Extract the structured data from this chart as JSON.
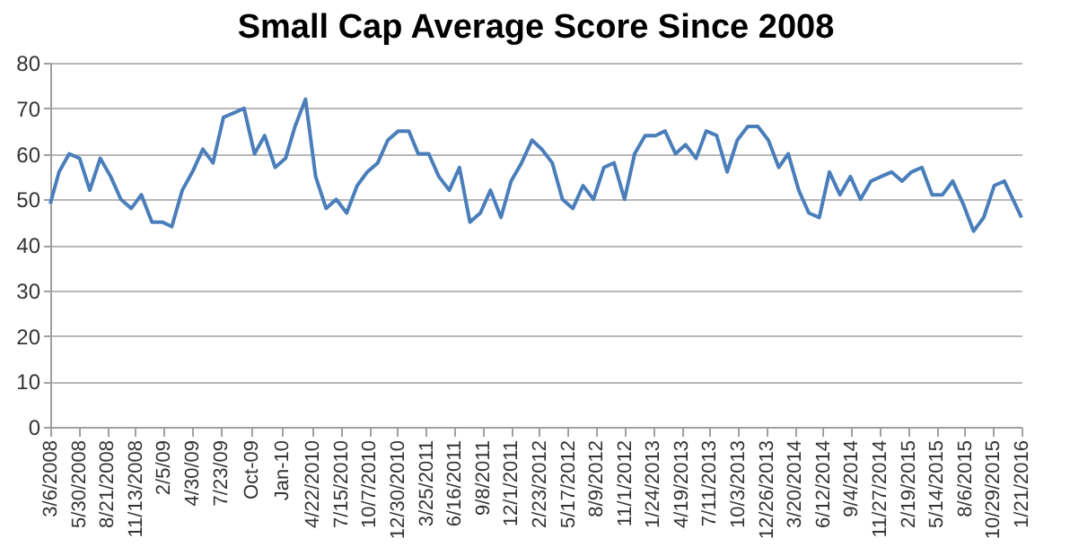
{
  "chart_data": {
    "type": "line",
    "title": "Small Cap Average Score Since 2008",
    "x": [
      "2008-03-06",
      "2008-04",
      "2008-05",
      "2008-06",
      "2008-07",
      "2008-08",
      "2008-09",
      "2008-10",
      "2008-11",
      "2008-12",
      "2009-01",
      "2009-02",
      "2009-03",
      "2009-04",
      "2009-05",
      "2009-06",
      "2009-07",
      "2009-08",
      "2009-09",
      "2009-10",
      "2009-11",
      "2009-12",
      "2010-01",
      "2010-02",
      "2010-03",
      "2010-04",
      "2010-05",
      "2010-06",
      "2010-07",
      "2010-08",
      "2010-09",
      "2010-10",
      "2010-11",
      "2010-12",
      "2011-01",
      "2011-02",
      "2011-03",
      "2011-04",
      "2011-05",
      "2011-06",
      "2011-07",
      "2011-08",
      "2011-09",
      "2011-10",
      "2011-11",
      "2011-12",
      "2012-01",
      "2012-02",
      "2012-03",
      "2012-04",
      "2012-05",
      "2012-06",
      "2012-07",
      "2012-08",
      "2012-09",
      "2012-10",
      "2012-11",
      "2012-12",
      "2013-01",
      "2013-02",
      "2013-03",
      "2013-04",
      "2013-05",
      "2013-06",
      "2013-07",
      "2013-08",
      "2013-09",
      "2013-10",
      "2013-11",
      "2013-12",
      "2014-01",
      "2014-02",
      "2014-03",
      "2014-04",
      "2014-05",
      "2014-06",
      "2014-07",
      "2014-08",
      "2014-09",
      "2014-10",
      "2014-11",
      "2014-12",
      "2015-01",
      "2015-02",
      "2015-03",
      "2015-04",
      "2015-05",
      "2015-06",
      "2015-07",
      "2015-08",
      "2015-09",
      "2015-10",
      "2015-11",
      "2015-12",
      "2016-01-21"
    ],
    "series": [
      {
        "color": "#4a7ebb",
        "values": [
          49,
          56,
          60,
          59,
          52,
          59,
          55,
          50,
          48,
          51,
          45,
          45,
          44,
          52,
          56,
          61,
          58,
          68,
          69,
          70,
          60,
          64,
          57,
          59,
          66,
          72,
          55,
          48,
          50,
          47,
          53,
          56,
          58,
          63,
          65,
          65,
          60,
          60,
          55,
          52,
          57,
          45,
          47,
          52,
          46,
          54,
          58,
          63,
          61,
          58,
          50,
          48,
          53,
          50,
          57,
          58,
          50,
          60,
          64,
          64,
          65,
          60,
          62,
          59,
          65,
          64,
          56,
          63,
          66,
          66,
          63,
          57,
          60,
          52,
          47,
          46,
          56,
          51,
          55,
          50,
          54,
          55,
          56,
          54,
          56,
          57,
          51,
          51,
          54,
          49,
          43,
          46,
          53,
          54,
          46
        ]
      }
    ],
    "ylim": [
      0,
      80
    ],
    "yticks": [
      0,
      10,
      20,
      30,
      40,
      50,
      60,
      70,
      80
    ],
    "xlim": [
      "2008-03-06",
      "2016-01-21"
    ],
    "xticks": [
      {
        "value": "2008-03-06",
        "label": "3/6/2008"
      },
      {
        "value": "2008-05-30",
        "label": "5/30/2008"
      },
      {
        "value": "2008-08-21",
        "label": "8/21/2008"
      },
      {
        "value": "2008-11-13",
        "label": "11/13/2008"
      },
      {
        "value": "2009-02-05",
        "label": "2/5/09"
      },
      {
        "value": "2009-04-30",
        "label": "4/30/09"
      },
      {
        "value": "2009-07-23",
        "label": "7/23/09"
      },
      {
        "value": "2009-10-22",
        "label": "Oct-09"
      },
      {
        "value": "2010-01-21",
        "label": "Jan-10"
      },
      {
        "value": "2010-04-22",
        "label": "4/22/2010"
      },
      {
        "value": "2010-07-15",
        "label": "7/15/2010"
      },
      {
        "value": "2010-10-07",
        "label": "10/7/2010"
      },
      {
        "value": "2010-12-30",
        "label": "12/30/2010"
      },
      {
        "value": "2011-03-25",
        "label": "3/25/2011"
      },
      {
        "value": "2011-06-16",
        "label": "6/16/2011"
      },
      {
        "value": "2011-09-08",
        "label": "9/8/2011"
      },
      {
        "value": "2011-12-01",
        "label": "12/1/2011"
      },
      {
        "value": "2012-02-23",
        "label": "2/23/2012"
      },
      {
        "value": "2012-05-17",
        "label": "5/17/2012"
      },
      {
        "value": "2012-08-09",
        "label": "8/9/2012"
      },
      {
        "value": "2012-11-01",
        "label": "11/1/2012"
      },
      {
        "value": "2013-01-24",
        "label": "1/24/2013"
      },
      {
        "value": "2013-04-19",
        "label": "4/19/2013"
      },
      {
        "value": "2013-07-11",
        "label": "7/11/2013"
      },
      {
        "value": "2013-10-03",
        "label": "10/3/2013"
      },
      {
        "value": "2013-12-26",
        "label": "12/26/2013"
      },
      {
        "value": "2014-03-20",
        "label": "3/20/2014"
      },
      {
        "value": "2014-06-12",
        "label": "6/12/2014"
      },
      {
        "value": "2014-09-04",
        "label": "9/4/2014"
      },
      {
        "value": "2014-11-27",
        "label": "11/27/2014"
      },
      {
        "value": "2015-02-19",
        "label": "2/19/2015"
      },
      {
        "value": "2015-05-14",
        "label": "5/14/2015"
      },
      {
        "value": "2015-08-06",
        "label": "8/6/2015"
      },
      {
        "value": "2015-10-29",
        "label": "10/29/2015"
      },
      {
        "value": "2016-01-21",
        "label": "1/21/2016"
      }
    ],
    "grid": "y",
    "marker": "none",
    "line_style": "solid"
  }
}
